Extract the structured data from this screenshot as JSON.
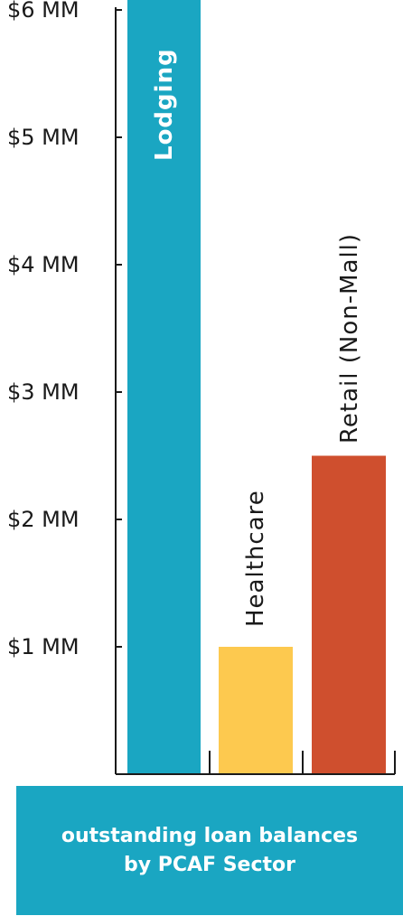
{
  "chart_data": {
    "type": "bar",
    "categories": [
      "Lodging",
      "Healthcare",
      "Retail (Non-Mall)"
    ],
    "values": [
      6.2,
      1.0,
      2.5
    ],
    "unit": "MM",
    "y_ticks": [
      "$1 MM",
      "$2 MM",
      "$3 MM",
      "$4 MM",
      "$5 MM",
      "$6 MM"
    ],
    "ylim": [
      0,
      6.2
    ],
    "grid": false,
    "colors": [
      "#1aa6c2",
      "#fdc94f",
      "#cf4f2e"
    ],
    "caption": {
      "line1": "outstanding loan balances",
      "line2": "by PCAF Sector"
    }
  },
  "caption_color": "#1aa6c2"
}
